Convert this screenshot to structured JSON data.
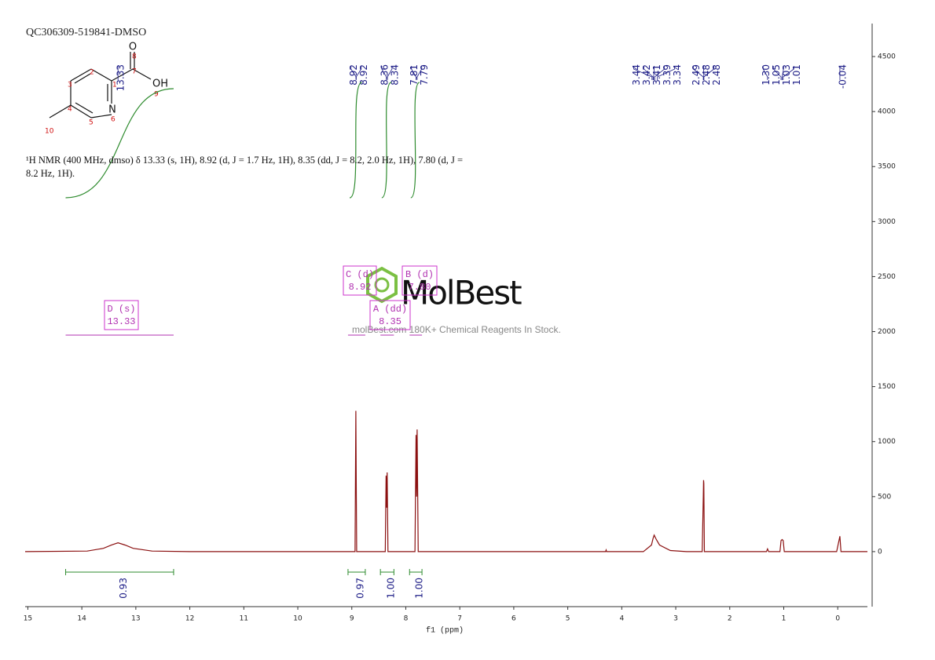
{
  "chart_data": {
    "type": "nmr",
    "title": "QC306309-519841-DMSO",
    "x_label": "f1 (ppm)",
    "description": "¹H NMR (400 MHz, dmso) δ 13.33 (s, 1H), 8.92 (d, J = 1.7 Hz, 1H), 8.35 (dd, J = 8.2, 2.0 Hz, 1H), 7.80 (d, J = 8.2 Hz, 1H).",
    "xlim": [
      15.05,
      -0.55
    ],
    "xticks": [
      15,
      14,
      13,
      12,
      11,
      10,
      9,
      8,
      7,
      6,
      5,
      4,
      3,
      2,
      1,
      0
    ],
    "ylim": [
      -500,
      4800
    ],
    "yticks": [
      0,
      500,
      1000,
      1500,
      2000,
      2500,
      3000,
      3500,
      4000,
      4500
    ],
    "series": [
      {
        "color": "#8b1010",
        "x": [
          15.05,
          13.9,
          13.6,
          13.45,
          13.33,
          13.2,
          13.05,
          12.7,
          12.0,
          9.4,
          8.94,
          8.925,
          8.91,
          8.38,
          8.365,
          8.355,
          8.345,
          8.33,
          7.83,
          7.81,
          7.8,
          7.79,
          7.77,
          4.3,
          4.29,
          4.28,
          3.6,
          3.45,
          3.42,
          3.4,
          3.36,
          3.3,
          3.1,
          2.8,
          2.51,
          2.49,
          2.485,
          2.48,
          2.47,
          1.32,
          1.3,
          1.28,
          1.07,
          1.05,
          1.03,
          1.01,
          0.99,
          0.02,
          -0.04,
          -0.06,
          -0.55
        ],
        "values": [
          0,
          5,
          30,
          60,
          80,
          60,
          30,
          5,
          0,
          0,
          0,
          1280,
          0,
          0,
          690,
          400,
          720,
          0,
          0,
          1060,
          500,
          1110,
          0,
          0,
          15,
          0,
          0,
          60,
          120,
          150,
          110,
          60,
          10,
          0,
          0,
          500,
          650,
          620,
          0,
          0,
          25,
          0,
          0,
          100,
          110,
          100,
          0,
          0,
          140,
          0,
          0
        ]
      }
    ],
    "peak_labels": [
      13.33,
      8.92,
      8.92,
      8.36,
      8.34,
      7.81,
      7.79,
      3.44,
      3.42,
      3.41,
      3.39,
      3.34,
      2.49,
      2.48,
      2.48,
      {
        "value": 1.3,
        "label": "1.30"
      },
      1.05,
      1.03,
      1.01,
      -0.04
    ],
    "integrals": {
      "ranges": [
        [
          14.3,
          12.3
        ],
        [
          9.07,
          8.75
        ],
        [
          8.47,
          8.22
        ],
        [
          7.93,
          7.7
        ]
      ],
      "values": [
        0.93,
        0.97,
        1,
        1
      ],
      "value_labels": [
        "0.93",
        "0.97",
        "1.00",
        "1.00"
      ]
    },
    "multiplets": [
      {
        "name": "D (s)",
        "shift": "13.33"
      },
      {
        "name": "C (d)",
        "shift": "8.92"
      },
      {
        "name": "B (d)",
        "shift": "7.80"
      },
      {
        "name": "A (dd)",
        "shift": "8.35"
      }
    ]
  },
  "structure": {
    "atoms": [
      "O",
      "OH",
      "N"
    ],
    "numbers": [
      "1",
      "2",
      "3",
      "4",
      "5",
      "6",
      "7",
      "8",
      "9",
      "10"
    ]
  },
  "watermark": {
    "logo": "MolBest",
    "tagline": "molBest.com 180K+ Chemical Reagents In Stock."
  }
}
